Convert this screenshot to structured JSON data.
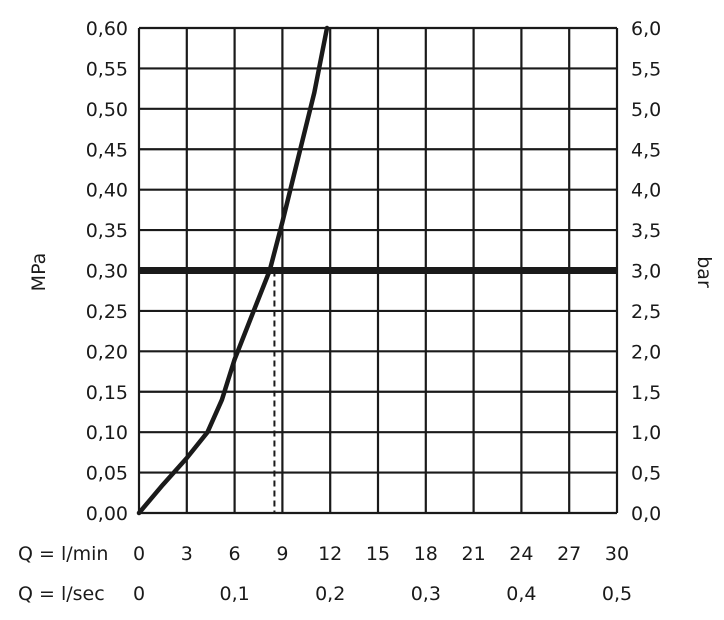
{
  "chart_data": {
    "type": "line",
    "title": "",
    "ylabel_left": "MPa",
    "ylabel_right": "bar",
    "xlabel_min_prefix": "Q = l/min",
    "xlabel_sec_prefix": "Q = l/sec",
    "xlim": [
      0,
      30
    ],
    "ylim": [
      0,
      0.6
    ],
    "grid": true,
    "x_ticks_lmin": [
      "0",
      "3",
      "6",
      "9",
      "12",
      "15",
      "18",
      "21",
      "24",
      "27",
      "30"
    ],
    "x_ticks_lsec": [
      {
        "value": 0,
        "label": "0"
      },
      {
        "value": 6,
        "label": "0,1"
      },
      {
        "value": 12,
        "label": "0,2"
      },
      {
        "value": 18,
        "label": "0,3"
      },
      {
        "value": 24,
        "label": "0,4"
      },
      {
        "value": 30,
        "label": "0,5"
      }
    ],
    "y_ticks_left": [
      "0,00",
      "0,05",
      "0,10",
      "0,15",
      "0,20",
      "0,25",
      "0,30",
      "0,35",
      "0,40",
      "0,45",
      "0,50",
      "0,55",
      "0,60"
    ],
    "y_ticks_right": [
      "0,0",
      "0,5",
      "1,0",
      "1,5",
      "2,0",
      "2,5",
      "3,0",
      "3,5",
      "4,0",
      "4,5",
      "5,0",
      "5,5",
      "6,0"
    ],
    "series": [
      {
        "x": [
          0,
          1.5,
          3.0,
          4.3,
          5.2,
          6.0,
          7.0,
          8.2,
          9.0,
          10.0,
          11.0,
          11.8
        ],
        "y": [
          0,
          0.035,
          0.068,
          0.1,
          0.14,
          0.19,
          0.24,
          0.3,
          0.36,
          0.44,
          0.52,
          0.6
        ]
      }
    ],
    "reference_line": {
      "y": 0.3
    },
    "reference_drop": {
      "x": 8.5,
      "y": 0.3
    },
    "colors": {
      "line": "#1a1a1a",
      "grid": "#1a1a1a"
    }
  }
}
